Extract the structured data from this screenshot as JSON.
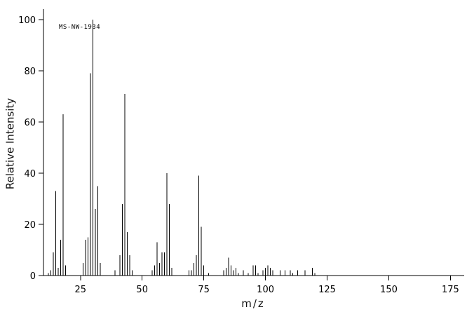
{
  "chart_data": {
    "type": "bar",
    "title": "",
    "annotation": "MS-NW-1934",
    "xlabel": "m/z",
    "ylabel": "Relative Intensity",
    "xlim": [
      10,
      180
    ],
    "ylim": [
      0,
      100
    ],
    "xticks": [
      25,
      50,
      75,
      100,
      125,
      150,
      175
    ],
    "yticks": [
      0,
      20,
      40,
      60,
      80,
      100
    ],
    "grid": false,
    "legend": false,
    "peaks": [
      [
        12,
        1
      ],
      [
        13,
        2
      ],
      [
        14,
        9
      ],
      [
        15,
        33
      ],
      [
        16,
        3
      ],
      [
        17,
        14
      ],
      [
        18,
        63
      ],
      [
        19,
        4
      ],
      [
        26,
        5
      ],
      [
        27,
        14
      ],
      [
        28,
        15
      ],
      [
        29,
        79
      ],
      [
        30,
        100
      ],
      [
        31,
        26
      ],
      [
        32,
        35
      ],
      [
        33,
        5
      ],
      [
        39,
        2
      ],
      [
        41,
        8
      ],
      [
        42,
        28
      ],
      [
        43,
        71
      ],
      [
        44,
        17
      ],
      [
        45,
        8
      ],
      [
        46,
        2
      ],
      [
        54,
        2
      ],
      [
        55,
        4
      ],
      [
        56,
        13
      ],
      [
        57,
        5
      ],
      [
        58,
        9
      ],
      [
        59,
        9
      ],
      [
        60,
        40
      ],
      [
        61,
        28
      ],
      [
        62,
        3
      ],
      [
        69,
        2
      ],
      [
        70,
        2
      ],
      [
        71,
        5
      ],
      [
        72,
        8
      ],
      [
        73,
        39
      ],
      [
        74,
        19
      ],
      [
        75,
        4
      ],
      [
        77,
        1
      ],
      [
        83,
        2
      ],
      [
        84,
        3
      ],
      [
        85,
        7
      ],
      [
        86,
        4
      ],
      [
        87,
        2
      ],
      [
        88,
        3
      ],
      [
        89,
        1
      ],
      [
        91,
        2
      ],
      [
        93,
        1
      ],
      [
        95,
        4
      ],
      [
        96,
        4
      ],
      [
        97,
        1
      ],
      [
        99,
        2
      ],
      [
        100,
        3
      ],
      [
        101,
        4
      ],
      [
        102,
        3
      ],
      [
        103,
        2
      ],
      [
        106,
        2
      ],
      [
        108,
        2
      ],
      [
        110,
        2
      ],
      [
        111,
        1
      ],
      [
        113,
        2
      ],
      [
        116,
        2
      ],
      [
        119,
        3
      ],
      [
        120,
        1
      ]
    ]
  }
}
